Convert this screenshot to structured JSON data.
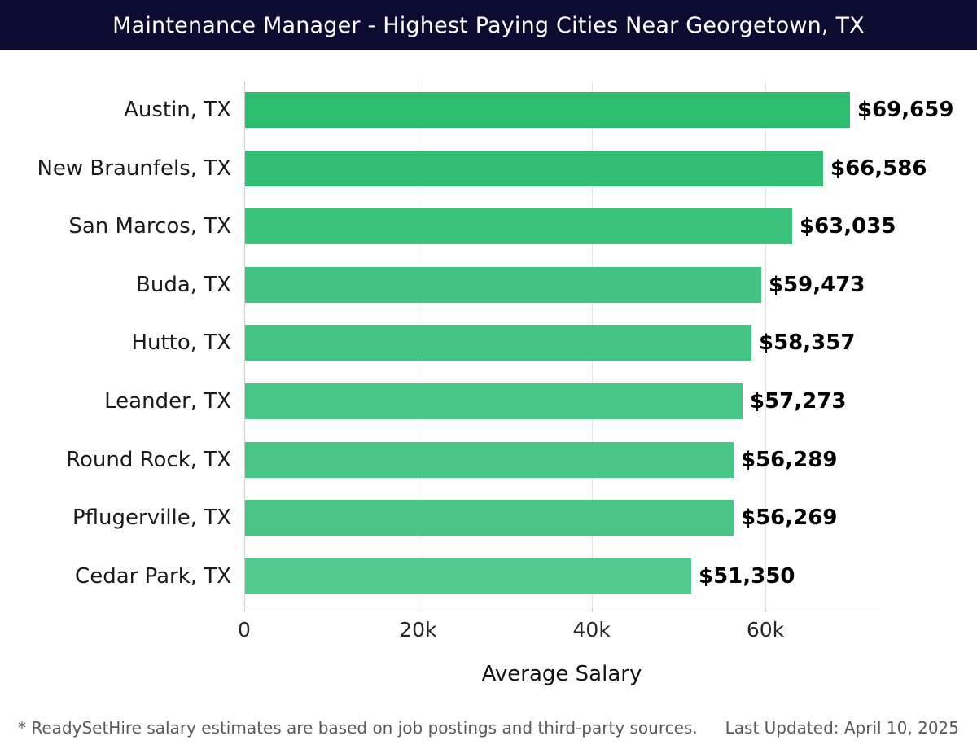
{
  "header": {
    "title": "Maintenance Manager - Highest Paying Cities Near Georgetown, TX",
    "bg_color": "#0c0c30",
    "text_color": "#ffffff"
  },
  "chart_data": {
    "type": "bar",
    "orientation": "horizontal",
    "title": "Maintenance Manager - Highest Paying Cities Near Georgetown, TX",
    "categories": [
      "Austin, TX",
      "New Braunfels, TX",
      "San Marcos, TX",
      "Buda, TX",
      "Hutto, TX",
      "Leander, TX",
      "Round Rock, TX",
      "Pflugerville, TX",
      "Cedar Park, TX"
    ],
    "values": [
      69659,
      66586,
      63035,
      59473,
      58357,
      57273,
      56289,
      56269,
      51350
    ],
    "value_labels": [
      "$69,659",
      "$66,586",
      "$63,035",
      "$59,473",
      "$58,357",
      "$57,273",
      "$56,289",
      "$56,269",
      "$51,350"
    ],
    "bar_colors": [
      "#2dbc6e",
      "#33be73",
      "#3ac17a",
      "#42c380",
      "#44c482",
      "#46c584",
      "#48c585",
      "#48c585",
      "#52c98e"
    ],
    "xlabel": "Average Salary",
    "x_ticks": [
      {
        "value": 0,
        "label": "0"
      },
      {
        "value": 20000,
        "label": "20k"
      },
      {
        "value": 40000,
        "label": "40k"
      },
      {
        "value": 60000,
        "label": "60k"
      }
    ],
    "xlim": [
      0,
      73125
    ],
    "grid": "vertical",
    "gridline_color": "#e4e4e4",
    "axis_color": "#cfcfcf",
    "label_color": "#1a1a1a",
    "value_label_color": "#000000"
  },
  "footer": {
    "note": "* ReadySetHire salary estimates are based on job postings and third-party sources.",
    "last_updated": "Last Updated: April 10, 2025"
  }
}
